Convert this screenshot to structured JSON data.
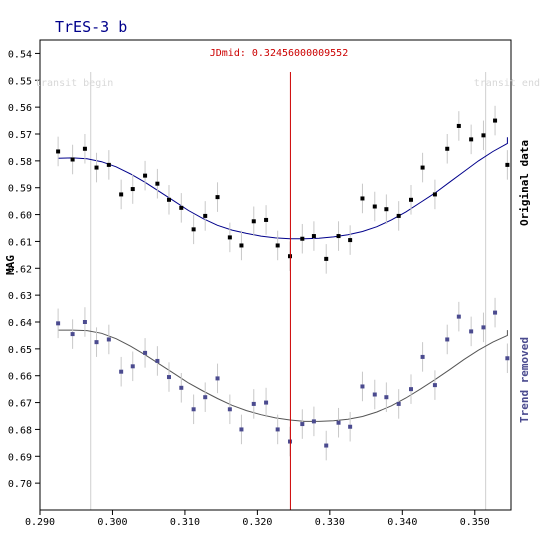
{
  "chart_data": {
    "type": "scatter",
    "title": "TrES-3 b",
    "ylabel": "MAG",
    "xlim": [
      0.29,
      0.355
    ],
    "ylim": [
      0.535,
      0.71
    ],
    "y_inverted": true,
    "grid": false,
    "x_ticks": [
      0.29,
      0.3,
      0.31,
      0.32,
      0.33,
      0.34,
      0.35
    ],
    "x_tick_labels": [
      "0.290",
      "0.300",
      "0.310",
      "0.320",
      "0.330",
      "0.340",
      "0.350"
    ],
    "y_ticks": [
      0.54,
      0.55,
      0.56,
      0.57,
      0.58,
      0.59,
      0.6,
      0.61,
      0.62,
      0.63,
      0.64,
      0.65,
      0.66,
      0.67,
      0.68,
      0.69,
      0.7
    ],
    "y_tick_labels": [
      "0.54",
      "0.55",
      "0.56",
      "0.57",
      "0.58",
      "0.59",
      "0.60",
      "0.61",
      "0.62",
      "0.63",
      "0.64",
      "0.65",
      "0.66",
      "0.67",
      "0.68",
      "0.69",
      "0.70"
    ],
    "markers": {
      "transit_begin": {
        "x": 0.297,
        "label": "transit begin"
      },
      "transit_end": {
        "x": 0.3515,
        "label": "transit end"
      },
      "jdmid": {
        "x": 0.32456,
        "label": "JDmid: 0.32456000009552"
      }
    },
    "x": [
      0.2925,
      0.2945,
      0.2962,
      0.2978,
      0.2995,
      0.3012,
      0.3028,
      0.3045,
      0.3062,
      0.3078,
      0.3095,
      0.3112,
      0.3128,
      0.3145,
      0.3162,
      0.3178,
      0.3195,
      0.3212,
      0.3228,
      0.3245,
      0.3262,
      0.3278,
      0.3295,
      0.3312,
      0.3328,
      0.3345,
      0.3362,
      0.3378,
      0.3395,
      0.3412,
      0.3428,
      0.3445,
      0.3462,
      0.3478,
      0.3495,
      0.3512,
      0.3528,
      0.3545
    ],
    "series": [
      {
        "name": "Original data",
        "color": "#000000",
        "fit_color": "#00008b",
        "values": [
          0.5765,
          0.5795,
          0.5755,
          0.5825,
          0.5815,
          0.5925,
          0.5905,
          0.5855,
          0.5885,
          0.5945,
          0.5975,
          0.6055,
          0.6005,
          0.5935,
          0.6085,
          0.6115,
          0.6025,
          0.602,
          0.6115,
          0.6155,
          0.609,
          0.608,
          0.6165,
          0.608,
          0.6095,
          0.594,
          0.597,
          0.598,
          0.6005,
          0.5945,
          0.5825,
          0.5925,
          0.5755,
          0.567,
          0.572,
          0.5705,
          0.565,
          0.5815
        ],
        "error": 0.0055,
        "fit": [
          0.579,
          0.5789,
          0.5792,
          0.5803,
          0.5822,
          0.5849,
          0.588,
          0.5915,
          0.595,
          0.5985,
          0.6015,
          0.604,
          0.6058,
          0.607,
          0.608,
          0.6087,
          0.609,
          0.609,
          0.6088,
          0.6083,
          0.6075,
          0.6063,
          0.6045,
          0.602,
          0.599,
          0.5955,
          0.592,
          0.588,
          0.584,
          0.58,
          0.5765,
          0.5735,
          0.5712,
          0.5713
        ]
      },
      {
        "name": "Trend removed",
        "color": "#4b4b8f",
        "fit_color": "#555555",
        "values": [
          0.6405,
          0.6445,
          0.64,
          0.6475,
          0.6465,
          0.6585,
          0.6565,
          0.6515,
          0.6545,
          0.6605,
          0.6645,
          0.6725,
          0.668,
          0.661,
          0.6725,
          0.68,
          0.6705,
          0.67,
          0.68,
          0.6845,
          0.678,
          0.677,
          0.686,
          0.6775,
          0.679,
          0.664,
          0.667,
          0.668,
          0.6705,
          0.665,
          0.653,
          0.6635,
          0.6465,
          0.638,
          0.6435,
          0.642,
          0.6365,
          0.6535
        ],
        "error": 0.0055,
        "fit": [
          0.643,
          0.643,
          0.6432,
          0.6442,
          0.6462,
          0.649,
          0.6522,
          0.6557,
          0.6592,
          0.6627,
          0.6657,
          0.6685,
          0.671,
          0.673,
          0.6745,
          0.6757,
          0.6765,
          0.677,
          0.677,
          0.6768,
          0.6762,
          0.6752,
          0.6735,
          0.6712,
          0.6683,
          0.665,
          0.6615,
          0.6578,
          0.654,
          0.6505,
          0.6475,
          0.645,
          0.6432,
          0.643
        ]
      }
    ],
    "fit_x": [
      0.2925,
      0.2945,
      0.2965,
      0.2985,
      0.3005,
      0.3025,
      0.3045,
      0.3065,
      0.3085,
      0.3105,
      0.3125,
      0.3145,
      0.3165,
      0.3185,
      0.3205,
      0.3225,
      0.3245,
      0.3265,
      0.3285,
      0.3305,
      0.3325,
      0.3345,
      0.3365,
      0.3385,
      0.3405,
      0.3425,
      0.3445,
      0.3465,
      0.3485,
      0.3505,
      0.3525,
      0.3545,
      0.3545,
      0.3545
    ]
  }
}
